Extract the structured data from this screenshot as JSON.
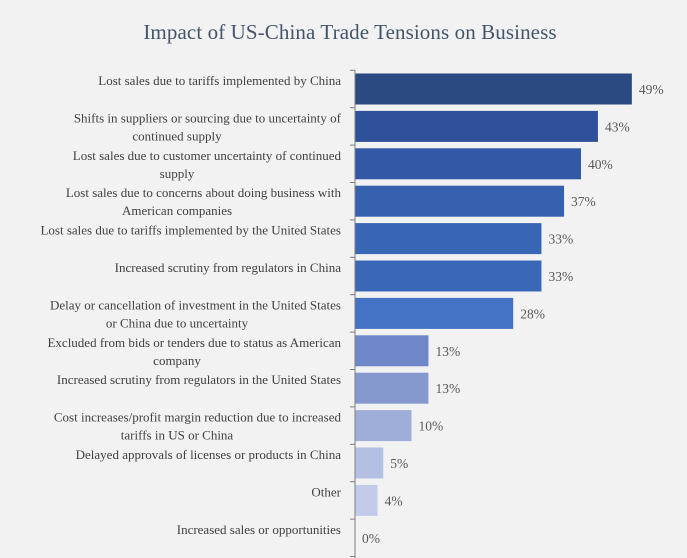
{
  "chart_data": {
    "type": "bar",
    "orientation": "horizontal",
    "title": "Impact of US-China Trade Tensions on Business",
    "xlabel": "",
    "ylabel": "",
    "xlim": [
      0,
      50
    ],
    "grid": false,
    "legend": "none",
    "value_suffix": "%",
    "categories": [
      [
        "Lost sales due to tariffs implemented by China"
      ],
      [
        "Shifts in suppliers or sourcing due to uncertainty of",
        "continued supply"
      ],
      [
        "Lost sales due to customer uncertainty of continued",
        "supply"
      ],
      [
        "Lost sales due to concerns about doing business with",
        "American companies"
      ],
      [
        "Lost sales due to tariffs implemented by the United States"
      ],
      [
        "Increased scrutiny from regulators in China"
      ],
      [
        "Delay or cancellation of investment in the United States",
        "or China due to uncertainty"
      ],
      [
        "Excluded from bids or tenders due to status as American",
        "company"
      ],
      [
        "Increased scrutiny from regulators in the United States"
      ],
      [
        "Cost increases/profit margin reduction due to increased",
        "tariffs in US or China"
      ],
      [
        "Delayed approvals of licenses or products in China"
      ],
      [
        "Other"
      ],
      [
        "Increased sales or opportunities"
      ]
    ],
    "values": [
      49,
      43,
      40,
      37,
      33,
      33,
      28,
      13,
      13,
      10,
      5,
      4,
      0
    ],
    "value_labels": [
      "49%",
      "43%",
      "40%",
      "37%",
      "33%",
      "33%",
      "28%",
      "13%",
      "13%",
      "10%",
      "5%",
      "4%",
      "0%"
    ],
    "colors": [
      "#2b4a82",
      "#2e519a",
      "#3258a6",
      "#3561af",
      "#3865b4",
      "#3a68b6",
      "#4472c4",
      "#6d87c9",
      "#8599cf",
      "#9eaed9",
      "#b4c0e3",
      "#c2ccea",
      "#d0d8ef"
    ],
    "axis_color": "#7f7f7f"
  }
}
